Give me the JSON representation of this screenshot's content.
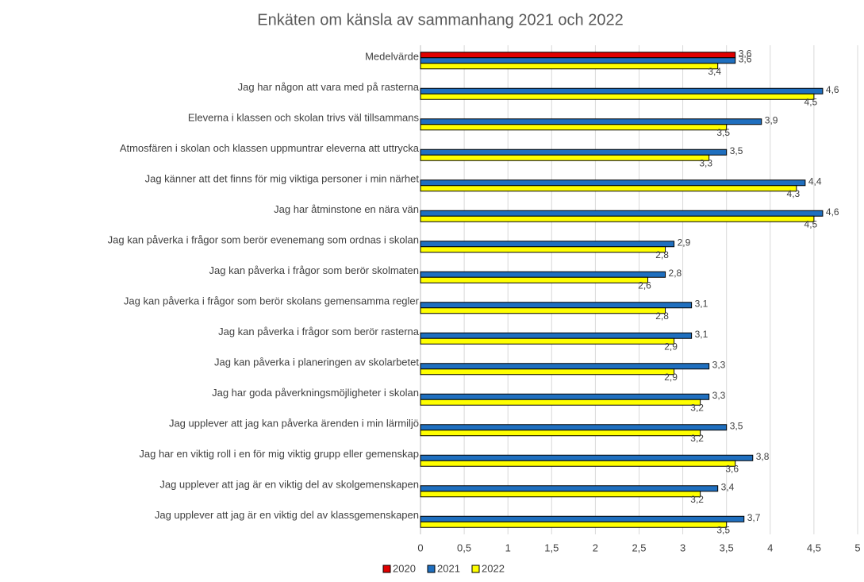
{
  "chart_data": {
    "type": "bar",
    "orientation": "horizontal",
    "title": "Enkäten om känsla av sammanhang 2021 och 2022",
    "categories": [
      "Medelvärde",
      "Jag har någon att vara med på rasterna",
      "Eleverna i klassen och skolan trivs väl tillsammans",
      "Atmosfären i skolan och klassen uppmuntrar eleverna att uttrycka",
      "Jag känner att det finns för mig viktiga personer i min närhet",
      "Jag har åtminstone en nära vän",
      "Jag kan påverka i frågor som berör evenemang som ordnas i skolan",
      "Jag kan påverka i frågor som berör skolmaten",
      "Jag kan påverka i frågor som berör skolans gemensamma regler",
      "Jag kan påverka i frågor som berör rasterna",
      "Jag kan påverka i planeringen av skolarbetet",
      "Jag har goda påverkningsmöjligheter i skolan",
      "Jag upplever att jag kan påverka ärenden i min lärmiljö",
      "Jag har en viktig roll i en för mig viktig grupp eller gemenskap",
      "Jag upplever att jag är en viktig del av skolgemenskapen",
      "Jag upplever att jag är en viktig del av klassgemenskapen"
    ],
    "series": [
      {
        "name": "2020",
        "color": "#e00000",
        "values": [
          3.6,
          null,
          null,
          null,
          null,
          null,
          null,
          null,
          null,
          null,
          null,
          null,
          null,
          null,
          null,
          null
        ],
        "value_labels": [
          "3,6",
          null,
          null,
          null,
          null,
          null,
          null,
          null,
          null,
          null,
          null,
          null,
          null,
          null,
          null,
          null
        ]
      },
      {
        "name": "2021",
        "color": "#1f6fbf",
        "values": [
          3.6,
          4.6,
          3.9,
          3.5,
          4.4,
          4.6,
          2.9,
          2.8,
          3.1,
          3.1,
          3.3,
          3.3,
          3.5,
          3.8,
          3.4,
          3.7
        ],
        "value_labels": [
          "3,6",
          "4,6",
          "3,9",
          "3,5",
          "4,4",
          "4,6",
          "2,9",
          "2,8",
          "3,1",
          "3,1",
          "3,3",
          "3,3",
          "3,5",
          "3,8",
          "3,4",
          "3,7"
        ]
      },
      {
        "name": "2022",
        "color": "#ffff00",
        "values": [
          3.4,
          4.5,
          3.5,
          3.3,
          4.3,
          4.5,
          2.8,
          2.6,
          2.8,
          2.9,
          2.9,
          3.2,
          3.2,
          3.6,
          3.2,
          3.5
        ],
        "value_labels": [
          "3,4",
          "4,5",
          "3,5",
          "3,3",
          "4,3",
          "4,5",
          "2,8",
          "2,6",
          "2,8",
          "2,9",
          "2,9",
          "3,2",
          "3,2",
          "3,6",
          "3,2",
          "3,5"
        ]
      }
    ],
    "xlim": [
      0,
      5
    ],
    "xticks": [
      0,
      {
        "value": 0.5,
        "label": "0,5"
      },
      1,
      {
        "value": 1.5,
        "label": "1,5"
      },
      2,
      {
        "value": 2.5,
        "label": "2,5"
      },
      3,
      {
        "value": 3.5,
        "label": "3,5"
      },
      4,
      {
        "value": 4.5,
        "label": "4,5"
      },
      5
    ],
    "grid": true,
    "legend": "bottom"
  }
}
